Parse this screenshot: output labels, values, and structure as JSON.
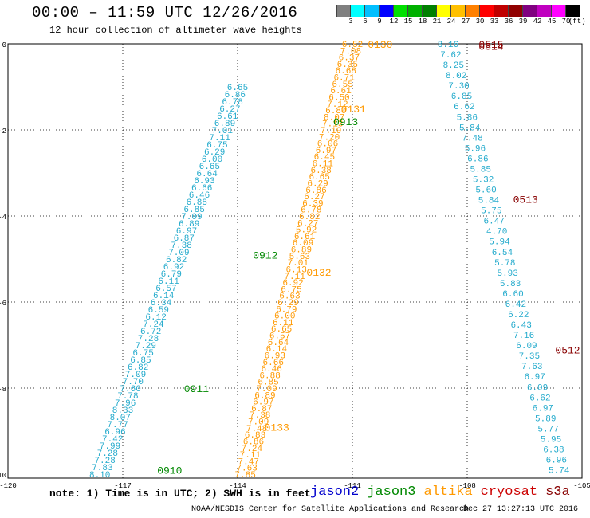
{
  "header": {
    "title": "00:00 – 11:59 UTC 12/26/2016",
    "subtitle": "12 hour collection of altimeter wave heights"
  },
  "colorbar": {
    "colors": [
      "#808080",
      "#00ffff",
      "#00bfff",
      "#0000ff",
      "#00e000",
      "#00b000",
      "#008000",
      "#ffff00",
      "#ffc000",
      "#ff8000",
      "#ff0000",
      "#c00000",
      "#900000",
      "#800080",
      "#c000c0",
      "#ff00ff",
      "#000000"
    ],
    "labels": [
      "3",
      "6",
      "9",
      "12",
      "15",
      "18",
      "21",
      "24",
      "27",
      "30",
      "33",
      "36",
      "39",
      "42",
      "45",
      "70"
    ],
    "unit": "(ft)"
  },
  "map": {
    "lon_range": [
      -120,
      -105
    ],
    "lat_range": [
      -10,
      0
    ],
    "x_ticks": [
      "-120",
      "-117",
      "-114",
      "-111",
      "-108",
      "-105"
    ],
    "x_tick_values": [
      -120,
      -117,
      -114,
      -111,
      -108,
      -105
    ],
    "y_ticks": [
      "0",
      "-2",
      "-4",
      "-6",
      "-8",
      "-10"
    ],
    "y_tick_values": [
      0,
      -2,
      -4,
      -6,
      -8,
      -10
    ],
    "grid": true,
    "passes": [
      {
        "label": "0130",
        "satellite": "altika",
        "color": "#ff9900",
        "label_lon": -110.6,
        "label_lat": 0.0,
        "start_lon": -111.0,
        "start_lat": 0.0,
        "end_lon": -113.8,
        "end_lat": -10.0,
        "values": [
          "6.52",
          "7.08",
          "6.37",
          "6.35",
          "6.68",
          "6.71",
          "6.55",
          "6.61",
          "6.50",
          "7.12",
          "6.80",
          "8.07",
          "7.13",
          "7.19",
          "7.20",
          "6.06",
          "6.97",
          "6.45",
          "6.11",
          "6.38",
          "6.65",
          "6.29",
          "6.86",
          "6.27",
          "6.39",
          "6.78",
          "6.82",
          "6.27",
          "5.92",
          "6.61",
          "6.09",
          "6.89",
          "5.63",
          "7.01",
          "6.13",
          "7.11",
          "6.92",
          "6.75",
          "6.63",
          "6.29",
          "6.79",
          "6.00",
          "6.11",
          "6.65",
          "6.57",
          "6.64",
          "6.14",
          "6.93",
          "6.66",
          "6.46",
          "6.88",
          "6.85",
          "7.09",
          "6.89",
          "6.97",
          "6.87",
          "7.38",
          "7.09",
          "7.48",
          "6.83",
          "6.86",
          "7.24",
          "7.11",
          "7.47",
          "7.63",
          "7.85"
        ]
      },
      {
        "label": "0131",
        "satellite": "altika",
        "color": "#ff9900",
        "label_lon": -111.3,
        "label_lat": -1.5,
        "start_lon": 0,
        "start_lat": 0,
        "end_lon": 0,
        "end_lat": 0,
        "values": []
      },
      {
        "label": "0132",
        "satellite": "altika",
        "color": "#ff9900",
        "label_lon": -112.2,
        "label_lat": -5.3,
        "start_lon": 0,
        "start_lat": 0,
        "end_lon": 0,
        "end_lat": 0,
        "values": []
      },
      {
        "label": "0133",
        "satellite": "altika",
        "color": "#ff9900",
        "label_lon": -113.3,
        "label_lat": -8.9,
        "start_lon": 0,
        "start_lat": 0,
        "end_lon": 0,
        "end_lat": 0,
        "values": []
      },
      {
        "label": "0913",
        "satellite": "jason3",
        "color": "#008800",
        "label_lon": -111.5,
        "label_lat": -1.8,
        "start_lon": 0,
        "start_lat": 0,
        "end_lon": 0,
        "end_lat": 0,
        "values": []
      },
      {
        "label": "0912",
        "satellite": "jason3",
        "color": "#008800",
        "label_lon": -113.6,
        "label_lat": -4.9,
        "start_lon": 0,
        "start_lat": 0,
        "end_lon": 0,
        "end_lat": 0,
        "values": []
      },
      {
        "label": "0911",
        "satellite": "jason3",
        "color": "#008800",
        "label_lon": -115.4,
        "label_lat": -8.0,
        "start_lon": 0,
        "start_lat": 0,
        "end_lon": 0,
        "end_lat": 0,
        "values": []
      },
      {
        "label": "0910",
        "satellite": "jason3",
        "color": "#008800",
        "label_lon": -116.1,
        "label_lat": -9.9,
        "start_lon": 0,
        "start_lat": 0,
        "end_lon": 0,
        "end_lat": 0,
        "values": []
      },
      {
        "label": "0515",
        "satellite": "cryosat",
        "color": "#880000",
        "label_lon": -107.7,
        "label_lat": 0.0,
        "start_lon": 0,
        "start_lat": 0,
        "end_lon": 0,
        "end_lat": 0,
        "values": []
      },
      {
        "label": "0514",
        "satellite": "cryosat",
        "color": "#880000",
        "label_lon": -107.7,
        "label_lat": -0.05,
        "start_lon": 0,
        "start_lat": 0,
        "end_lon": 0,
        "end_lat": 0,
        "values": []
      },
      {
        "label": "0513",
        "satellite": "cryosat",
        "color": "#880000",
        "label_lon": -106.8,
        "label_lat": -3.6,
        "start_lon": 0,
        "start_lat": 0,
        "end_lon": 0,
        "end_lat": 0,
        "values": []
      },
      {
        "label": "0512",
        "satellite": "cryosat",
        "color": "#880000",
        "label_lon": -105.7,
        "label_lat": -7.1,
        "start_lon": 0,
        "start_lat": 0,
        "end_lon": 0,
        "end_lat": 0,
        "values": []
      },
      {
        "label": "",
        "satellite": "jason3",
        "color": "#22aacc",
        "label_lon": 0,
        "label_lat": 0,
        "start_lon": -114.0,
        "start_lat": -1.0,
        "end_lon": -117.6,
        "end_lat": -10.0,
        "values": [
          "6.65",
          "6.86",
          "6.78",
          "6.27",
          "6.61",
          "6.89",
          "7.01",
          "7.11",
          "6.75",
          "6.29",
          "6.00",
          "6.65",
          "6.64",
          "6.93",
          "6.66",
          "6.46",
          "6.88",
          "6.85",
          "7.09",
          "6.89",
          "6.97",
          "6.87",
          "7.38",
          "7.09",
          "6.82",
          "6.92",
          "6.79",
          "6.11",
          "6.57",
          "6.14",
          "6.34",
          "6.59",
          "6.12",
          "7.24",
          "6.72",
          "7.28",
          "7.29",
          "6.75",
          "6.85",
          "6.82",
          "7.09",
          "7.70",
          "7.60",
          "7.78",
          "7.96",
          "8.33",
          "8.07",
          "7.77",
          "6.96",
          "7.42",
          "7.99",
          "7.28",
          "7.28",
          "7.83",
          "8.10"
        ]
      },
      {
        "label": "",
        "satellite": "cryosat",
        "color": "#22aacc",
        "label_lon": 0,
        "label_lat": 0,
        "start_lon": -108.5,
        "start_lat": 0.0,
        "end_lon": -105.6,
        "end_lat": -9.9,
        "values": [
          "8.16",
          "7.62",
          "8.25",
          "8.02",
          "7.30",
          "6.85",
          "6.62",
          "5.86",
          "5.84",
          "7.48",
          "5.96",
          "6.86",
          "5.85",
          "5.32",
          "5.60",
          "5.84",
          "5.75",
          "6.47",
          "4.70",
          "5.94",
          "6.54",
          "5.78",
          "5.93",
          "5.83",
          "6.60",
          "6.42",
          "6.22",
          "6.43",
          "7.16",
          "6.09",
          "7.35",
          "7.63",
          "6.97",
          "6.09",
          "6.62",
          "6.97",
          "5.89",
          "5.77",
          "5.95",
          "6.38",
          "6.96",
          "5.74"
        ]
      }
    ]
  },
  "footer": {
    "note": "note: 1) Time is in UTC; 2) SWH is in feet",
    "legend": [
      {
        "name": "jason2",
        "color": "#0000cc"
      },
      {
        "name": "jason3",
        "color": "#008800"
      },
      {
        "name": "altika",
        "color": "#ff9900"
      },
      {
        "name": "cryosat",
        "color": "#cc0000"
      },
      {
        "name": "s3a",
        "color": "#880000"
      }
    ],
    "credit": "NOAA/NESDIS Center for Satellite Applications and Research",
    "timestamp": "Dec 27 13:27:13 UTC 2016"
  }
}
